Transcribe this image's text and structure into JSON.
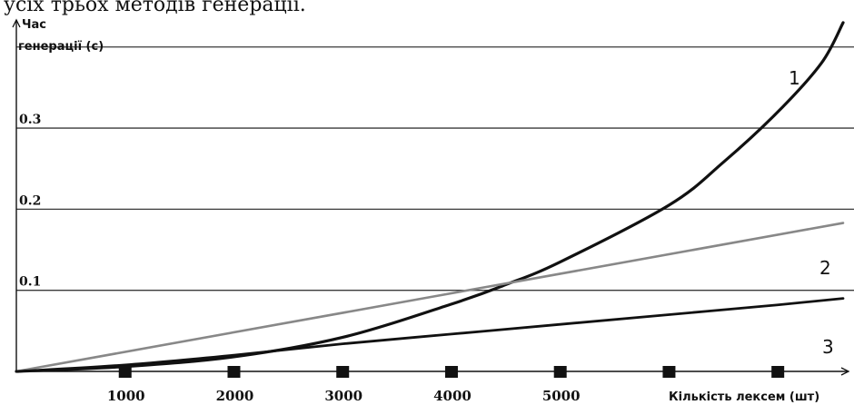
{
  "caption_fragment": "усіх трьох методів генерації.",
  "chart_data": {
    "type": "line",
    "ylabel_line1": "Час",
    "ylabel_line2": "генерації (с)",
    "xlabel": "Кількість лексем (шт)",
    "y_ticks": [
      {
        "value": 0.1,
        "label": "0.1"
      },
      {
        "value": 0.2,
        "label": "0.2"
      },
      {
        "value": 0.3,
        "label": "0.3"
      }
    ],
    "x_ticks": [
      {
        "value": 1000,
        "label": "1000"
      },
      {
        "value": 2000,
        "label": "2000"
      },
      {
        "value": 3000,
        "label": "3000"
      },
      {
        "value": 4000,
        "label": "4000"
      },
      {
        "value": 5000,
        "label": "5000"
      },
      {
        "value": 6000,
        "label": ""
      },
      {
        "value": 7000,
        "label": ""
      }
    ],
    "xlim": [
      0,
      7700
    ],
    "ylim": [
      0,
      0.44
    ],
    "grid_values": [
      0.1,
      0.2,
      0.3,
      0.4
    ],
    "series": [
      {
        "name": "1",
        "color": "#111111",
        "width": 3.2,
        "x": [
          0,
          1000,
          2000,
          3000,
          4000,
          4500,
          5000,
          6000,
          6500,
          7000,
          7400,
          7600
        ],
        "y": [
          0,
          0.006,
          0.018,
          0.042,
          0.083,
          0.107,
          0.135,
          0.205,
          0.258,
          0.32,
          0.38,
          0.43
        ]
      },
      {
        "name": "2",
        "color": "#888888",
        "width": 2.6,
        "x": [
          0,
          7600
        ],
        "y": [
          0,
          0.183
        ]
      },
      {
        "name": "3",
        "color": "#111111",
        "width": 2.8,
        "x": [
          0,
          1000,
          2000,
          3000,
          4000,
          5000,
          6000,
          7000,
          7600
        ],
        "y": [
          0,
          0.008,
          0.02,
          0.034,
          0.046,
          0.058,
          0.07,
          0.082,
          0.09
        ]
      }
    ]
  }
}
